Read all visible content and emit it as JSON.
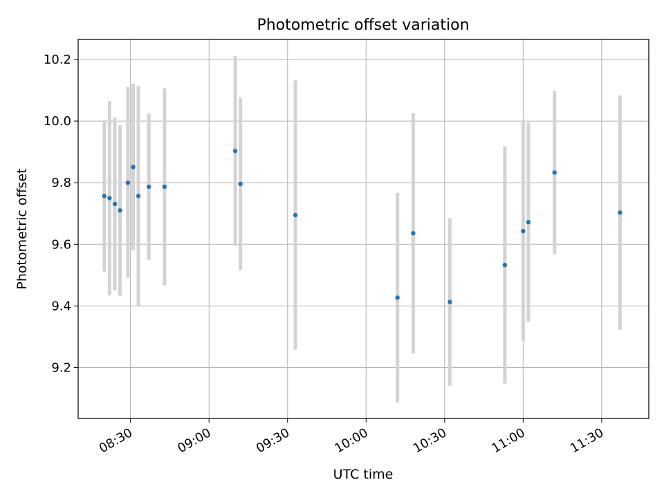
{
  "chart_data": {
    "type": "scatter",
    "title": "Photometric offset variation",
    "xlabel": "UTC time",
    "ylabel": "Photometric offset",
    "xlim": [
      "08:10",
      "11:48"
    ],
    "ylim": [
      9.035,
      10.265
    ],
    "grid": true,
    "x_ticks": [
      "08:30",
      "09:00",
      "09:30",
      "10:00",
      "10:30",
      "11:00",
      "11:30"
    ],
    "y_ticks": [
      9.2,
      9.4,
      9.6,
      9.8,
      10.0,
      10.2
    ],
    "series": [
      {
        "name": "Photometric offset",
        "marker_color": "#1f77b4",
        "errorbar_color": "#d3d3d3",
        "points": [
          {
            "t": "08:20",
            "y": 9.757,
            "err": 0.245
          },
          {
            "t": "08:22",
            "y": 9.75,
            "err": 0.315
          },
          {
            "t": "08:24",
            "y": 9.731,
            "err": 0.28
          },
          {
            "t": "08:26",
            "y": 9.71,
            "err": 0.277
          },
          {
            "t": "08:29",
            "y": 9.8,
            "err": 0.31
          },
          {
            "t": "08:31",
            "y": 9.851,
            "err": 0.27
          },
          {
            "t": "08:33",
            "y": 9.757,
            "err": 0.357
          },
          {
            "t": "08:37",
            "y": 9.787,
            "err": 0.237
          },
          {
            "t": "08:43",
            "y": 9.787,
            "err": 0.32
          },
          {
            "t": "09:10",
            "y": 9.903,
            "err": 0.308
          },
          {
            "t": "09:12",
            "y": 9.796,
            "err": 0.28
          },
          {
            "t": "09:33",
            "y": 9.695,
            "err": 0.437
          },
          {
            "t": "10:12",
            "y": 9.427,
            "err": 0.34
          },
          {
            "t": "10:18",
            "y": 9.636,
            "err": 0.39
          },
          {
            "t": "10:32",
            "y": 9.413,
            "err": 0.272
          },
          {
            "t": "10:53",
            "y": 9.533,
            "err": 0.385
          },
          {
            "t": "11:00",
            "y": 9.643,
            "err": 0.357
          },
          {
            "t": "11:02",
            "y": 9.672,
            "err": 0.323
          },
          {
            "t": "11:12",
            "y": 9.833,
            "err": 0.265
          },
          {
            "t": "11:37",
            "y": 9.703,
            "err": 0.38
          }
        ]
      }
    ]
  }
}
